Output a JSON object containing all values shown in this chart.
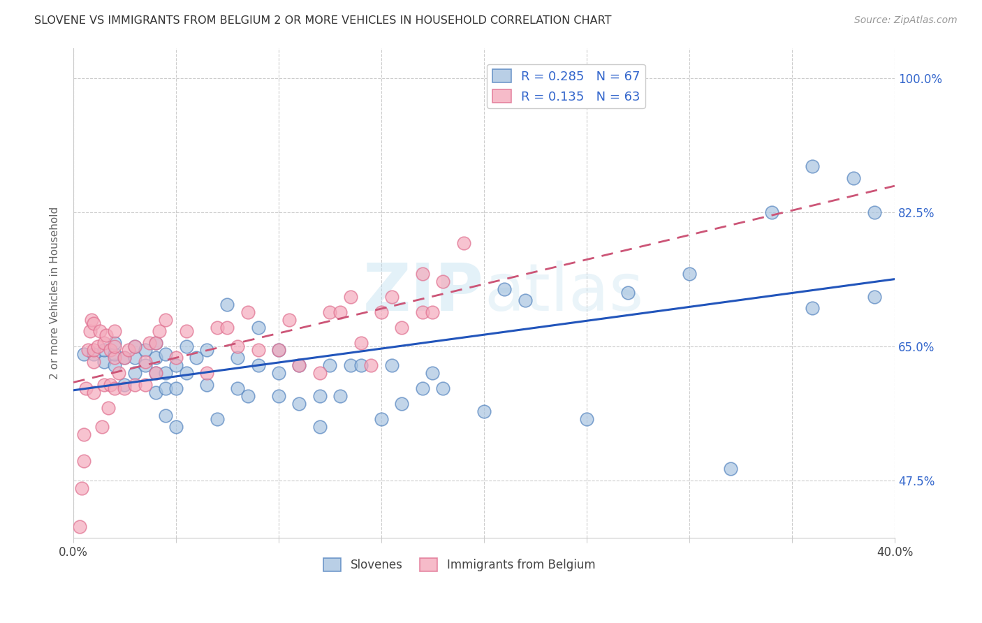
{
  "title": "SLOVENE VS IMMIGRANTS FROM BELGIUM 2 OR MORE VEHICLES IN HOUSEHOLD CORRELATION CHART",
  "source": "Source: ZipAtlas.com",
  "ylabel": "2 or more Vehicles in Household",
  "xlim": [
    0.0,
    0.4
  ],
  "ylim": [
    0.4,
    1.04
  ],
  "xticks": [
    0.0,
    0.05,
    0.1,
    0.15,
    0.2,
    0.25,
    0.3,
    0.35,
    0.4
  ],
  "ytick_positions": [
    0.475,
    0.65,
    0.825,
    1.0
  ],
  "ytick_labels": [
    "47.5%",
    "65.0%",
    "82.5%",
    "100.0%"
  ],
  "blue_color": "#A8C4E0",
  "pink_color": "#F4AABC",
  "blue_edge_color": "#5585C0",
  "pink_edge_color": "#E07090",
  "blue_line_color": "#2255BB",
  "pink_line_color": "#CC5577",
  "R_blue": 0.285,
  "N_blue": 67,
  "R_pink": 0.135,
  "N_pink": 63,
  "legend_labels": [
    "Slovenes",
    "Immigrants from Belgium"
  ],
  "watermark_zip": "ZIP",
  "watermark_atlas": "atlas",
  "blue_x": [
    0.005,
    0.01,
    0.015,
    0.015,
    0.02,
    0.02,
    0.02,
    0.025,
    0.025,
    0.03,
    0.03,
    0.03,
    0.035,
    0.035,
    0.04,
    0.04,
    0.04,
    0.04,
    0.045,
    0.045,
    0.045,
    0.045,
    0.05,
    0.05,
    0.05,
    0.055,
    0.055,
    0.06,
    0.065,
    0.065,
    0.07,
    0.075,
    0.08,
    0.08,
    0.085,
    0.09,
    0.09,
    0.1,
    0.1,
    0.1,
    0.11,
    0.11,
    0.12,
    0.12,
    0.125,
    0.13,
    0.135,
    0.14,
    0.15,
    0.155,
    0.16,
    0.17,
    0.175,
    0.18,
    0.2,
    0.21,
    0.22,
    0.25,
    0.27,
    0.3,
    0.32,
    0.34,
    0.36,
    0.36,
    0.38,
    0.39,
    0.39
  ],
  "blue_y": [
    0.64,
    0.64,
    0.63,
    0.645,
    0.625,
    0.64,
    0.655,
    0.6,
    0.635,
    0.615,
    0.635,
    0.65,
    0.625,
    0.645,
    0.59,
    0.615,
    0.635,
    0.655,
    0.56,
    0.595,
    0.615,
    0.64,
    0.545,
    0.595,
    0.625,
    0.615,
    0.65,
    0.635,
    0.6,
    0.645,
    0.555,
    0.705,
    0.595,
    0.635,
    0.585,
    0.625,
    0.675,
    0.585,
    0.615,
    0.645,
    0.575,
    0.625,
    0.545,
    0.585,
    0.625,
    0.585,
    0.625,
    0.625,
    0.555,
    0.625,
    0.575,
    0.595,
    0.615,
    0.595,
    0.565,
    0.725,
    0.71,
    0.555,
    0.72,
    0.745,
    0.49,
    0.825,
    0.885,
    0.7,
    0.87,
    0.715,
    0.825
  ],
  "pink_x": [
    0.003,
    0.004,
    0.005,
    0.005,
    0.006,
    0.007,
    0.008,
    0.009,
    0.01,
    0.01,
    0.01,
    0.01,
    0.012,
    0.013,
    0.014,
    0.015,
    0.015,
    0.016,
    0.017,
    0.018,
    0.018,
    0.02,
    0.02,
    0.02,
    0.02,
    0.022,
    0.025,
    0.025,
    0.027,
    0.03,
    0.03,
    0.035,
    0.035,
    0.037,
    0.04,
    0.04,
    0.042,
    0.045,
    0.05,
    0.055,
    0.065,
    0.07,
    0.075,
    0.08,
    0.085,
    0.09,
    0.1,
    0.105,
    0.11,
    0.12,
    0.125,
    0.13,
    0.135,
    0.14,
    0.145,
    0.15,
    0.155,
    0.16,
    0.17,
    0.17,
    0.175,
    0.18,
    0.19
  ],
  "pink_y": [
    0.415,
    0.465,
    0.5,
    0.535,
    0.595,
    0.645,
    0.67,
    0.685,
    0.59,
    0.63,
    0.645,
    0.68,
    0.65,
    0.67,
    0.545,
    0.6,
    0.655,
    0.665,
    0.57,
    0.6,
    0.645,
    0.595,
    0.635,
    0.65,
    0.67,
    0.615,
    0.595,
    0.635,
    0.645,
    0.6,
    0.65,
    0.6,
    0.63,
    0.655,
    0.615,
    0.655,
    0.67,
    0.685,
    0.635,
    0.67,
    0.615,
    0.675,
    0.675,
    0.65,
    0.695,
    0.645,
    0.645,
    0.685,
    0.625,
    0.615,
    0.695,
    0.695,
    0.715,
    0.655,
    0.625,
    0.695,
    0.715,
    0.675,
    0.695,
    0.745,
    0.695,
    0.735,
    0.785
  ]
}
